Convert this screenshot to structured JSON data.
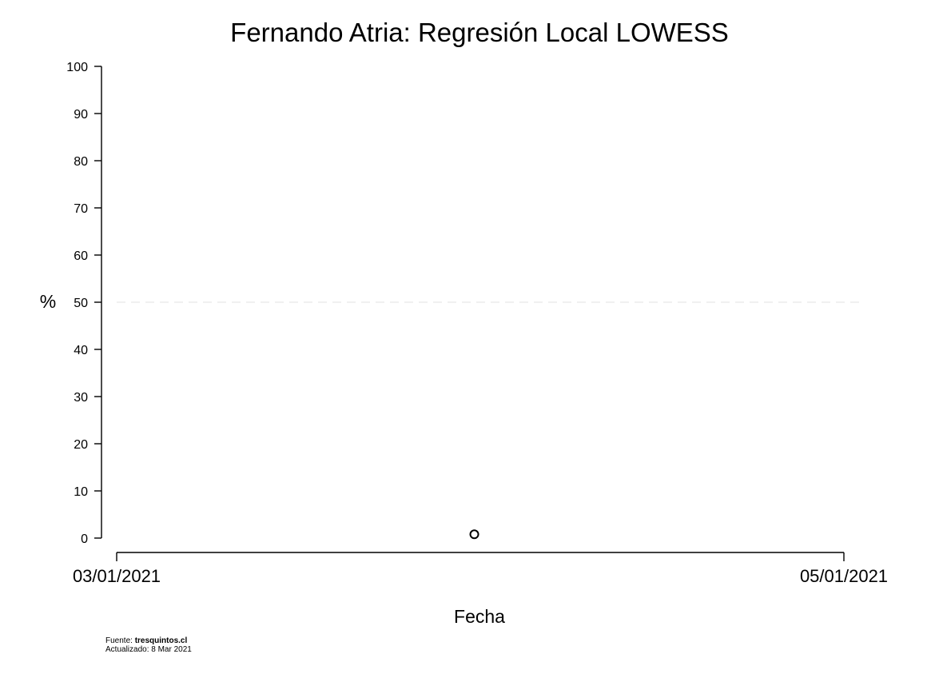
{
  "chart_data": {
    "type": "scatter",
    "title": "Fernando Atria: Regresión Local LOWESS",
    "xlabel": "Fecha",
    "ylabel": "%",
    "x_type": "date",
    "xlim": [
      "2021-03-01",
      "2021-05-01"
    ],
    "x_ticks": [
      {
        "value": "2021-03-01",
        "label": "03/01/2021"
      },
      {
        "value": "2021-05-01",
        "label": "05/01/2021"
      }
    ],
    "ylim": [
      0,
      100
    ],
    "y_ticks": [
      0,
      10,
      20,
      30,
      40,
      50,
      60,
      70,
      80,
      90,
      100
    ],
    "reference_line": {
      "y": 50,
      "style": "dashed",
      "color": "#e8e8e8"
    },
    "points": [
      {
        "x": "2021-03-31",
        "y": 0.8
      }
    ],
    "grid": false,
    "legend": "none",
    "marker": "open-circle",
    "marker_color": "#000000"
  },
  "footer": {
    "source_label": "Fuente: ",
    "source_name": "tresquintos.cl",
    "updated": "Actualizado: 8 Mar 2021"
  }
}
